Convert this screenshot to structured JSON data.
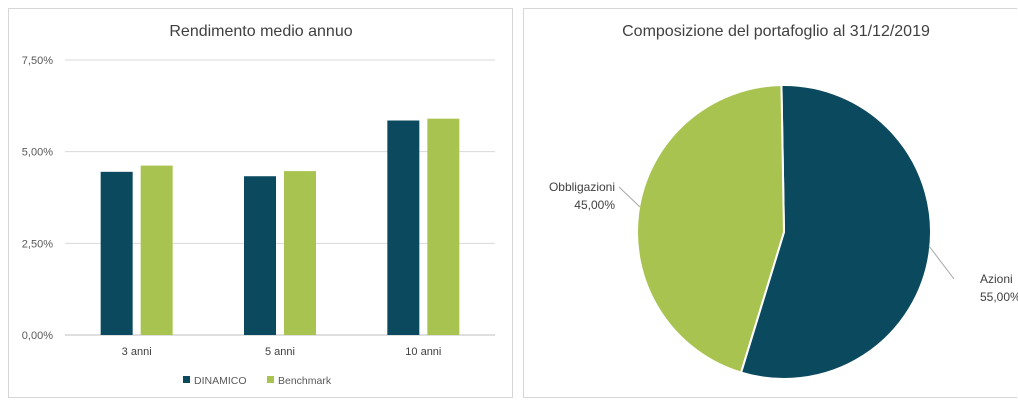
{
  "chart_data": [
    {
      "type": "bar",
      "title": "Rendimento medio annuo",
      "categories": [
        "3 anni",
        "5 anni",
        "10 anni"
      ],
      "series": [
        {
          "name": "DINAMICO",
          "values": [
            4.45,
            4.33,
            5.85
          ]
        },
        {
          "name": "Benchmark",
          "values": [
            4.62,
            4.47,
            5.9
          ]
        }
      ],
      "ylim": [
        0,
        7.5
      ],
      "yticks": [
        "0,00%",
        "2,50%",
        "5,00%",
        "7,50%"
      ],
      "ytick_values": [
        0,
        2.5,
        5,
        7.5
      ],
      "grid": true,
      "legend": "bottom",
      "colors": [
        "#0b4a5e",
        "#a8c34f"
      ]
    },
    {
      "type": "pie",
      "title": "Composizione del portafoglio al 31/12/2019",
      "slices": [
        {
          "label": "Azioni",
          "value": 55.0,
          "value_label": "55,00%",
          "color": "#0b4a5e"
        },
        {
          "label": "Obbligazioni",
          "value": 45.0,
          "value_label": "45,00%",
          "color": "#a8c34f"
        }
      ]
    }
  ]
}
